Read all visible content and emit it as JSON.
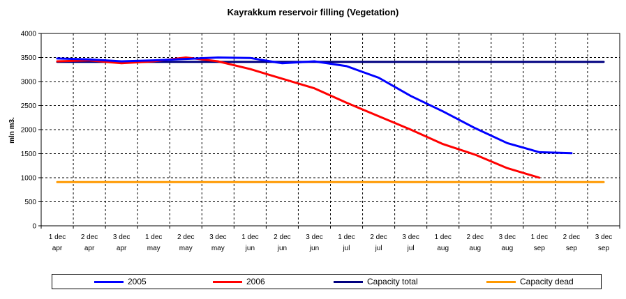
{
  "chart_data": {
    "type": "line",
    "title": "Kayrakkum reservoir filling  (Vegetation)",
    "xlabel": "",
    "ylabel": "mln m3.",
    "ylim": [
      0,
      4000
    ],
    "yticks": [
      0,
      500,
      1000,
      1500,
      2000,
      2500,
      3000,
      3500,
      4000
    ],
    "categories": [
      [
        "1 dec",
        "apr"
      ],
      [
        "2 dec",
        "apr"
      ],
      [
        "3 dec",
        "apr"
      ],
      [
        "1 dec",
        "may"
      ],
      [
        "2 dec",
        "may"
      ],
      [
        "3 dec",
        "may"
      ],
      [
        "1 dec",
        "jun"
      ],
      [
        "2 dec",
        "jun"
      ],
      [
        "3 dec",
        "jun"
      ],
      [
        "1 dec",
        "jul"
      ],
      [
        "2 dec",
        "jul"
      ],
      [
        "3 dec",
        "jul"
      ],
      [
        "1 dec",
        "aug"
      ],
      [
        "2 dec",
        "aug"
      ],
      [
        "3 dec",
        "aug"
      ],
      [
        "1 dec",
        "sep"
      ],
      [
        "2 dec",
        "sep"
      ],
      [
        "3 dec",
        "sep"
      ]
    ],
    "grid": true,
    "legend_position": "bottom",
    "series": [
      {
        "name": "2005",
        "color": "#0000FF",
        "values": [
          3480,
          3460,
          3420,
          3440,
          3470,
          3500,
          3490,
          3380,
          3420,
          3320,
          3080,
          2700,
          2380,
          2030,
          1720,
          1530,
          1510,
          null
        ]
      },
      {
        "name": "2006",
        "color": "#FF0000",
        "values": [
          3420,
          3440,
          3380,
          3420,
          3500,
          3420,
          3260,
          3060,
          2860,
          2560,
          2280,
          2000,
          1700,
          1480,
          1200,
          1000,
          null,
          null
        ]
      },
      {
        "name": "Capacity total",
        "color": "#000080",
        "values": [
          3410,
          3410,
          3410,
          3410,
          3410,
          3410,
          3410,
          3410,
          3410,
          3410,
          3410,
          3410,
          3410,
          3410,
          3410,
          3410,
          3410,
          3410
        ]
      },
      {
        "name": "Capacity dead",
        "color": "#FF9900",
        "values": [
          910,
          910,
          910,
          910,
          910,
          910,
          910,
          910,
          910,
          910,
          910,
          910,
          910,
          910,
          910,
          910,
          910,
          910
        ]
      }
    ]
  }
}
